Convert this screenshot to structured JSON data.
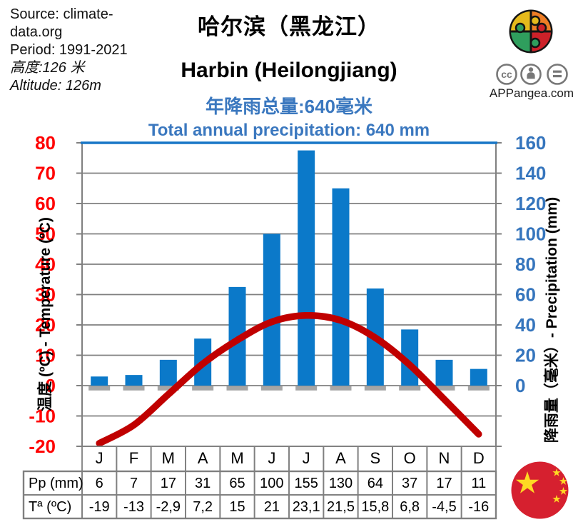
{
  "meta": {
    "source_line1": "Source: climate-",
    "source_line2": "data.org",
    "period": "Period: 1991-2021",
    "altitude_zh": "高度:126 米",
    "altitude_en": "Altitude: 126m"
  },
  "title": {
    "zh": "哈尔滨（黑龙江）",
    "en": "Harbin (Heilongjiang)",
    "precip_zh": "年降雨总量:640毫米",
    "precip_en": "Total annual precipitation: 640 mm"
  },
  "branding": {
    "site": "APPangea.com",
    "license": "CC BY-ND",
    "logo": "puzzle-globe"
  },
  "chart_data": {
    "type": "bar+line",
    "title_zh": "哈尔滨（黑龙江）",
    "title_en": "Harbin (Heilongjiang)",
    "subtitle_zh": "年降雨总量:640毫米",
    "subtitle_en": "Total annual precipitation: 640 mm",
    "categories": [
      "J",
      "F",
      "M",
      "A",
      "M",
      "J",
      "J",
      "A",
      "S",
      "O",
      "N",
      "D"
    ],
    "series": [
      {
        "name": "Precipitation",
        "type": "bar",
        "axis": "right",
        "unit": "mm",
        "color": "#0b79c9",
        "values": [
          6,
          7,
          17,
          31,
          65,
          100,
          155,
          130,
          64,
          37,
          17,
          11
        ]
      },
      {
        "name": "Temperature",
        "type": "line",
        "axis": "left",
        "unit": "ºC",
        "color": "#c00000",
        "values": [
          -19,
          -13,
          -2.9,
          7.2,
          15,
          21,
          23.1,
          21.5,
          15.8,
          6.8,
          -4.5,
          -16
        ]
      }
    ],
    "left_axis": {
      "label": "温度 (ºC) - Temperature (ºC)",
      "min": -20,
      "max": 80,
      "step": 10,
      "tick_labels": [
        "80",
        "70",
        "60",
        "50",
        "40",
        "30",
        "20",
        "10",
        "0",
        "-10",
        "-20"
      ],
      "color": "#ff0000"
    },
    "right_axis": {
      "label": "降雨量（毫米）- Precipitation (mm)",
      "min": 0,
      "max": 160,
      "step": 20,
      "tick_labels": [
        "160",
        "140",
        "120",
        "100",
        "80",
        "60",
        "40",
        "20",
        "0"
      ],
      "color": "#3575bd"
    },
    "grid": true,
    "legend": "none"
  },
  "table": {
    "row_headers": [
      "Pp (mm)",
      "Tª (ºC)"
    ],
    "precip_display": [
      "6",
      "7",
      "17",
      "31",
      "65",
      "100",
      "155",
      "130",
      "64",
      "37",
      "17",
      "11"
    ],
    "temp_display": [
      "-19",
      "-13",
      "-2,9",
      "7,2",
      "15",
      "21",
      "23,1",
      "21,5",
      "15,8",
      "6,8",
      "-4,5",
      "-16"
    ]
  },
  "colors": {
    "bar_blue": "#0b79c9",
    "curve_red": "#c00000",
    "axis_red": "#ff0000",
    "axis_blue": "#3575bd",
    "title_blue": "#3b78bf",
    "grid_gray": "#808080",
    "table_border": "#7f7f7f",
    "base_mark_gray": "#a6a6a6",
    "flag_red": "#d6202f",
    "flag_yellow": "#fed923",
    "logo_yellow": "#e5ba1c",
    "logo_orange": "#ee7d25",
    "logo_green": "#2f9e5d",
    "logo_red": "#cd2129"
  }
}
